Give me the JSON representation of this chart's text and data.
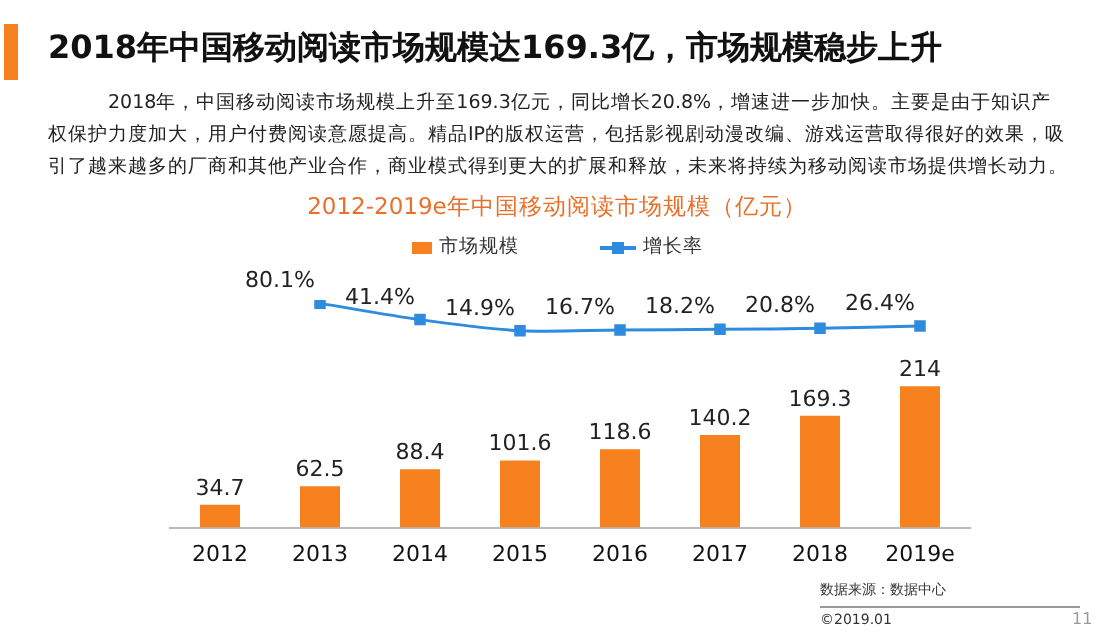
{
  "chart_data": [
    {
      "type": "line",
      "title": "2018年中国移动阅读市场规模达169.3亿，市场规模稳步上升",
      "subtitle": "2012-2019e年中国移动阅读市场规模（亿元）",
      "annotations": [
        "2018年，中国移动阅读市场规模上升至169.3亿元，同比增长20.8%，增速进一步加快。主要是由于知识产权保护力度加大，用户付费阅读意愿提高。精品IP的版权运营，包括影视剧动漫改编、游戏运营取得很好的效果，吸引了越来越多的厂商和其他产业合作，商业模式得到更大的扩展和释放，未来将持续为移动阅读市场提供增长动力。"
      ],
      "categories": [
        null,
        null,
        null,
        null,
        null,
        null,
        null,
        null
      ],
      "series": [
        {
          "name": "增长率",
          "color": "#2e8bde",
          "values": [
            null,
            80.1,
            41.4,
            14.9,
            16.7,
            18.2,
            20.8,
            26.4
          ],
          "value_labels": [
            null,
            "80.1%",
            "41.4%",
            "14.9%",
            "16.7%",
            "18.2%",
            "20.8%",
            "26.4%"
          ]
        }
      ],
      "marker": "square",
      "legend": "top",
      "tick_labels": false
    },
    {
      "type": "bar",
      "annotations": [
        "数据来源：数据中心",
        "©2019.01",
        "11"
      ],
      "categories": [
        "2012",
        "2013",
        "2014",
        "2015",
        "2016",
        "2017",
        "2018",
        "2019e"
      ],
      "series": [
        {
          "name": "市场规模",
          "color": "#f7811e",
          "values": [
            34.7,
            62.5,
            88.4,
            101.6,
            118.6,
            140.2,
            169.3,
            214
          ]
        }
      ],
      "data_labels": true,
      "legend": "top",
      "tick_labels": "x"
    }
  ]
}
